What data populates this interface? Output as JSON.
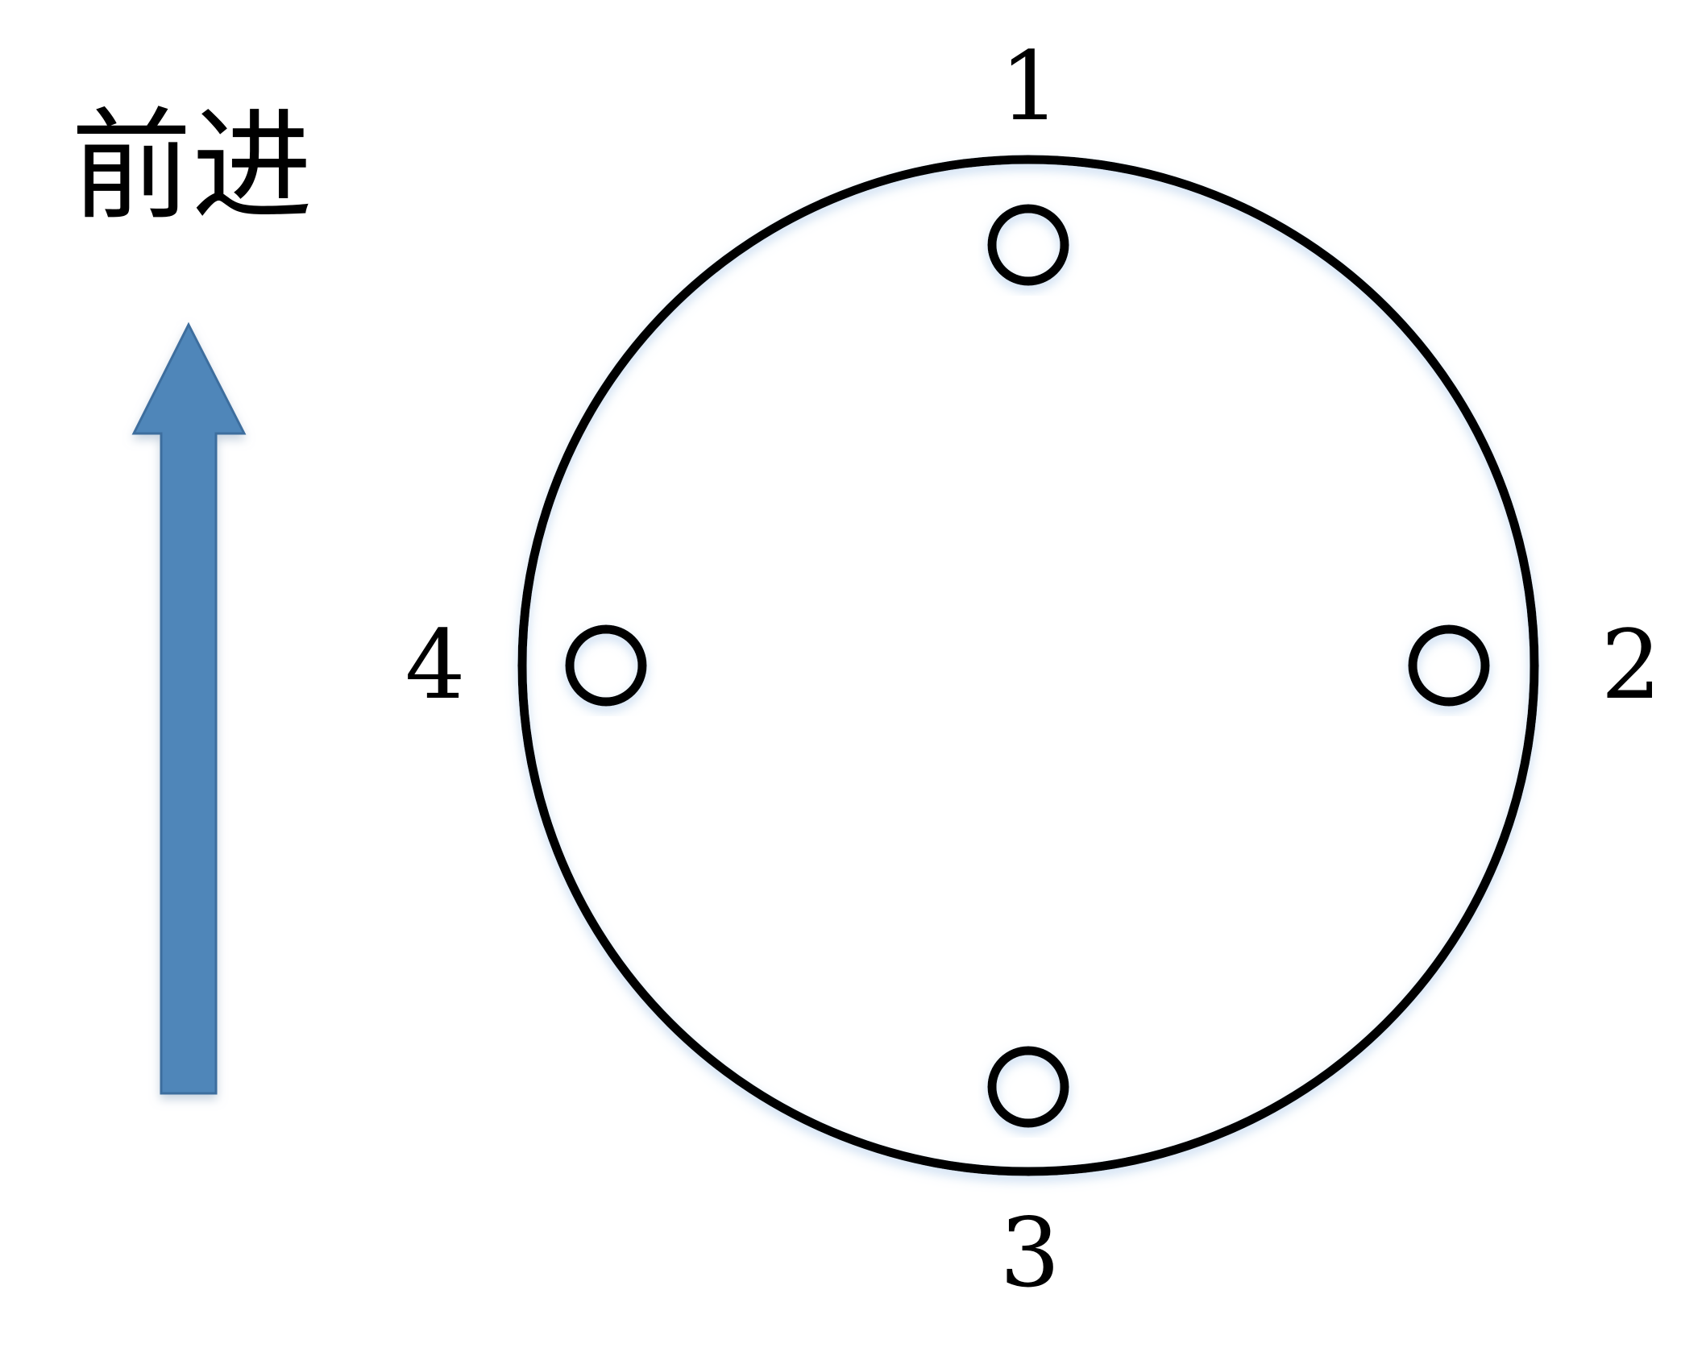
{
  "direction_label": "前进",
  "arrow": {
    "icon": "up-arrow-icon",
    "fill_color": "#4F86B9",
    "stroke_color": "#3E6E9E"
  },
  "circle": {
    "stroke_color": "#000000",
    "glow_color": "#BFD6EE"
  },
  "holes": [
    {
      "id": "1",
      "label": "1",
      "position": "top"
    },
    {
      "id": "2",
      "label": "2",
      "position": "right"
    },
    {
      "id": "3",
      "label": "3",
      "position": "bottom"
    },
    {
      "id": "4",
      "label": "4",
      "position": "left"
    }
  ]
}
